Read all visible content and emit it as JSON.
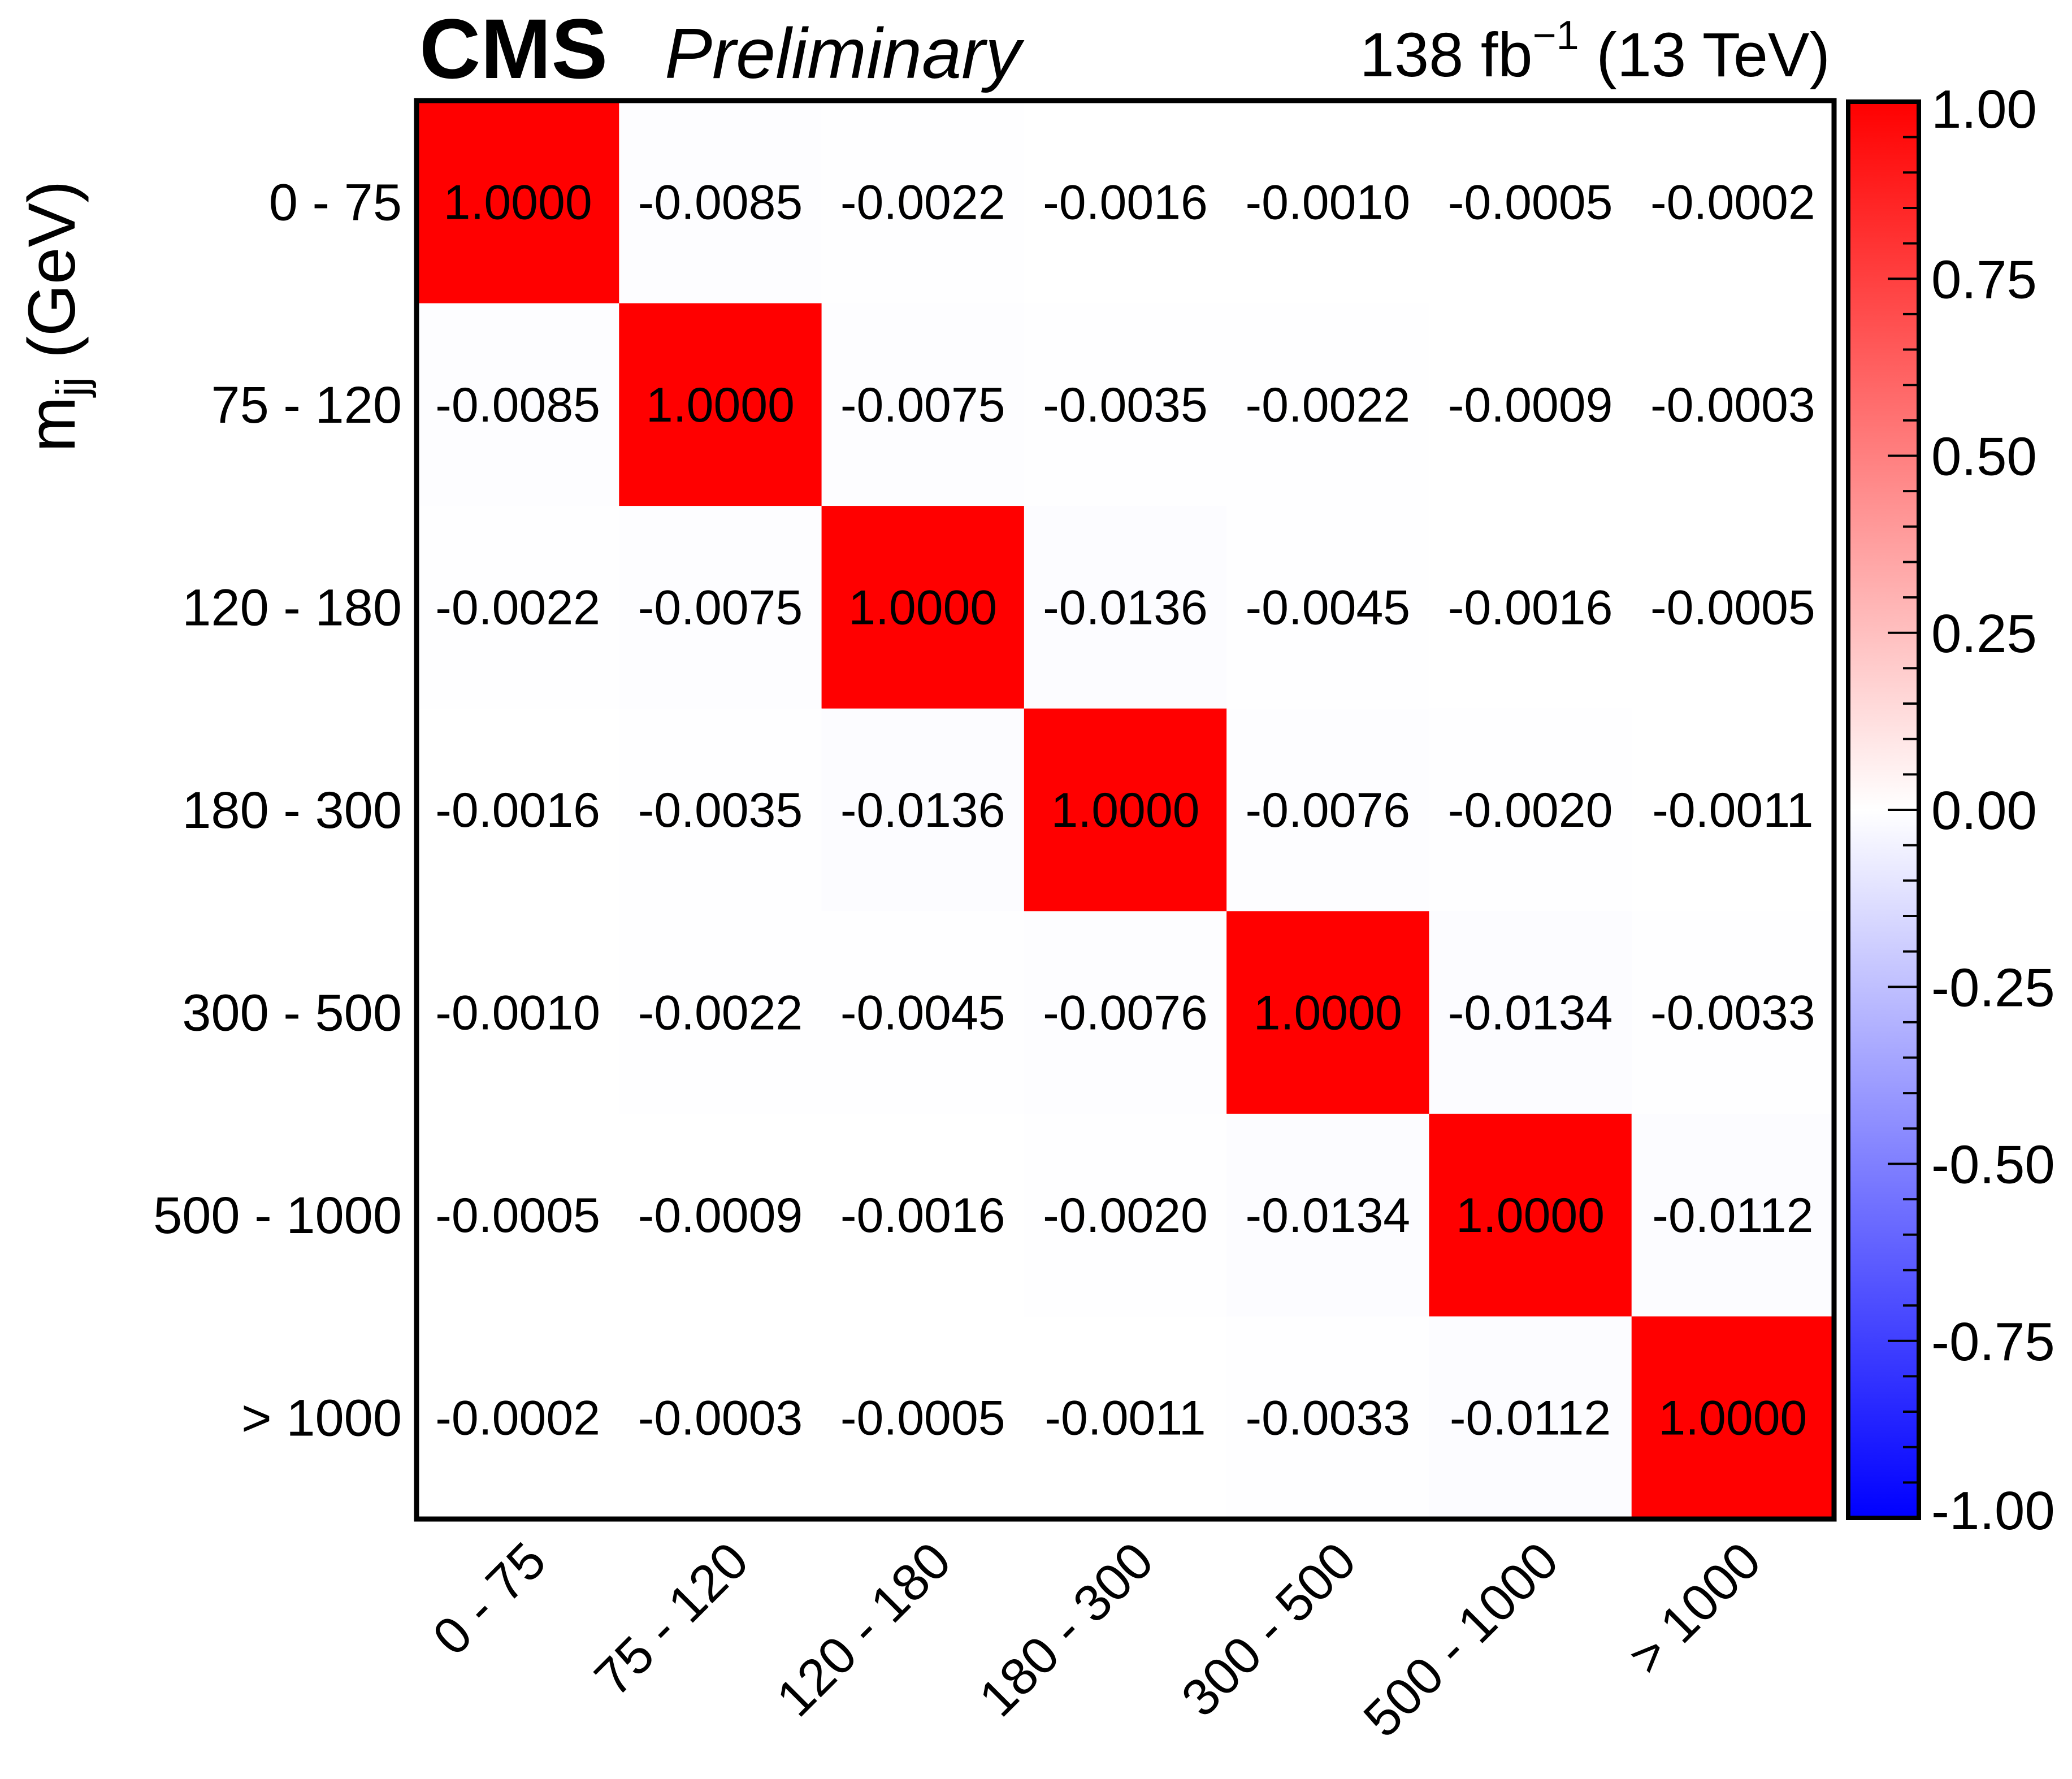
{
  "header": {
    "experiment": "CMS",
    "status": "Preliminary",
    "lumi": "138 fb",
    "lumi_exp": "−1",
    "energy": " (13 TeV)"
  },
  "colors": {
    "positive": "#ff0000",
    "zero": "#ffffff",
    "negative": "#0000ff",
    "frame": "#000000"
  },
  "chart_data": {
    "type": "heatmap",
    "x_categories": [
      "0 - 75",
      "75 - 120",
      "120 - 180",
      "180 - 300",
      "300 - 500",
      "500 - 1000",
      "> 1000"
    ],
    "y_categories": [
      "0 - 75",
      "75 - 120",
      "120 - 180",
      "180 - 300",
      "300 - 500",
      "500 - 1000",
      "> 1000"
    ],
    "ylabel": "m",
    "ylabel_sub": "jj",
    "ylabel_unit": " (GeV)",
    "values": [
      [
        1.0,
        -0.0085,
        -0.0022,
        -0.0016,
        -0.001,
        -0.0005,
        -0.0002
      ],
      [
        -0.0085,
        1.0,
        -0.0075,
        -0.0035,
        -0.0022,
        -0.0009,
        -0.0003
      ],
      [
        -0.0022,
        -0.0075,
        1.0,
        -0.0136,
        -0.0045,
        -0.0016,
        -0.0005
      ],
      [
        -0.0016,
        -0.0035,
        -0.0136,
        1.0,
        -0.0076,
        -0.002,
        -0.0011
      ],
      [
        -0.001,
        -0.0022,
        -0.0045,
        -0.0076,
        1.0,
        -0.0134,
        -0.0033
      ],
      [
        -0.0005,
        -0.0009,
        -0.0016,
        -0.002,
        -0.0134,
        1.0,
        -0.0112
      ],
      [
        -0.0002,
        -0.0003,
        -0.0005,
        -0.0011,
        -0.0033,
        -0.0112,
        1.0
      ]
    ],
    "labels": [
      [
        "1.0000",
        "-0.0085",
        "-0.0022",
        "-0.0016",
        "-0.0010",
        "-0.0005",
        "-0.0002"
      ],
      [
        "-0.0085",
        "1.0000",
        "-0.0075",
        "-0.0035",
        "-0.0022",
        "-0.0009",
        "-0.0003"
      ],
      [
        "-0.0022",
        "-0.0075",
        "1.0000",
        "-0.0136",
        "-0.0045",
        "-0.0016",
        "-0.0005"
      ],
      [
        "-0.0016",
        "-0.0035",
        "-0.0136",
        "1.0000",
        "-0.0076",
        "-0.0020",
        "-0.0011"
      ],
      [
        "-0.0010",
        "-0.0022",
        "-0.0045",
        "-0.0076",
        "1.0000",
        "-0.0134",
        "-0.0033"
      ],
      [
        "-0.0005",
        "-0.0009",
        "-0.0016",
        "-0.0020",
        "-0.0134",
        "1.0000",
        "-0.0112"
      ],
      [
        "-0.0002",
        "-0.0003",
        "-0.0005",
        "-0.0011",
        "-0.0033",
        "-0.0112",
        "1.0000"
      ]
    ],
    "zlim": [
      -1.0,
      1.0
    ],
    "colorbar_ticks": [
      "1.00",
      "0.75",
      "0.50",
      "0.25",
      "0.00",
      "-0.25",
      "-0.50",
      "-0.75",
      "-1.00"
    ],
    "colorscale": "blue-white-red"
  }
}
